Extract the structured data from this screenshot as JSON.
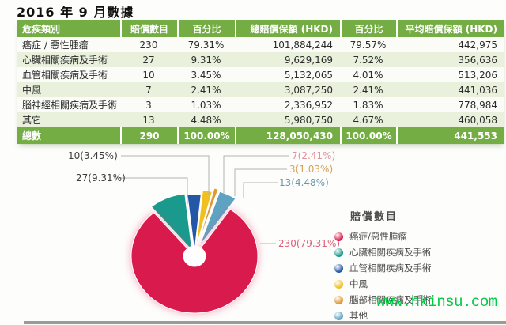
{
  "page_title": "2016 年 9 月數據",
  "table": {
    "headers": [
      "危疾類別",
      "賠償數目",
      "百分比",
      "總賠償保額 (HKD)",
      "百分比",
      "平均賠償保額 (HKD)"
    ],
    "rows": [
      [
        "癌症 / 惡性腫瘤",
        "230",
        "79.31%",
        "101,884,244",
        "79.57%",
        "442,975"
      ],
      [
        "心臟相關疾病及手術",
        "27",
        "9.31%",
        "9,629,169",
        "7.52%",
        "356,636"
      ],
      [
        "血管相關疾病及手術",
        "10",
        "3.45%",
        "5,132,065",
        "4.01%",
        "513,206"
      ],
      [
        "中風",
        "7",
        "2.41%",
        "3,087,250",
        "2.41%",
        "441,036"
      ],
      [
        "腦神經相關疾病及手術",
        "3",
        "1.03%",
        "2,336,952",
        "1.83%",
        "778,984"
      ],
      [
        "其它",
        "13",
        "4.48%",
        "5,980,750",
        "4.67%",
        "460,058"
      ]
    ],
    "total_row": [
      "總數",
      "290",
      "100.00%",
      "128,050,430",
      "100.00%",
      "441,553"
    ]
  },
  "chart_data": {
    "type": "pie",
    "title": "賠償數目",
    "legend_title": "賠償數目",
    "legend_position": "right",
    "donut": true,
    "total": 290,
    "slices": [
      {
        "label": "癌症/惡性腫瘤",
        "value": 230,
        "pct": "79.31%",
        "callout": "230(79.31%)",
        "color": "#d91a4d",
        "callout_color": "#d9607a"
      },
      {
        "label": "心臟相關疾病及手術",
        "value": 27,
        "pct": "9.31%",
        "callout": "27(9.31%)",
        "color": "#1a9a8d",
        "callout_color": "#3c3c3c"
      },
      {
        "label": "血管相關疾病及手術",
        "value": 10,
        "pct": "3.45%",
        "callout": "10(3.45%)",
        "color": "#2458a6",
        "callout_color": "#3c3c3c"
      },
      {
        "label": "中風",
        "value": 7,
        "pct": "2.41%",
        "callout": "7(2.41%)",
        "color": "#f0c020",
        "callout_color": "#e29098"
      },
      {
        "label": "腦部相關疾病及手術",
        "value": 3,
        "pct": "1.03%",
        "callout": "3(1.03%)",
        "color": "#df9a35",
        "callout_color": "#d8a057"
      },
      {
        "label": "其他",
        "value": 13,
        "pct": "4.48%",
        "callout": "13(4.48%)",
        "color": "#5fa3c2",
        "callout_color": "#6797a9"
      }
    ]
  },
  "watermark": "www.hkinsu.com",
  "colors": {
    "table_header_green": "#75ad45",
    "row_tint": "#e9f1dc",
    "watermark_green": "#00cb44",
    "leader_line": "#b3b3b3"
  }
}
